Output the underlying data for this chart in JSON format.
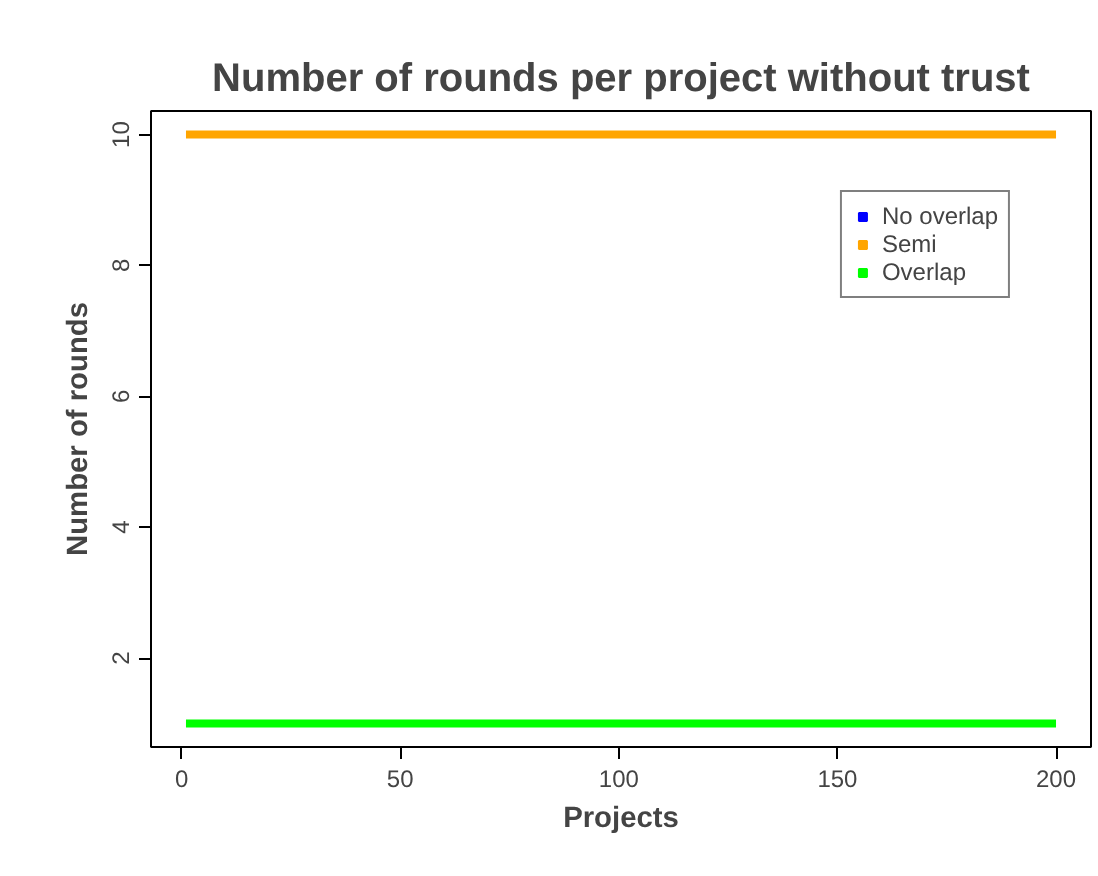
{
  "chart_data": {
    "type": "line",
    "title": "Number of rounds per project without trust",
    "xlabel": "Projects",
    "ylabel": "Number of rounds",
    "x": [
      1,
      200
    ],
    "series": [
      {
        "name": "No overlap",
        "color": "#0000ff",
        "values": [
          null,
          null
        ]
      },
      {
        "name": "Semi",
        "color": "#ffa500",
        "values": [
          10,
          10
        ]
      },
      {
        "name": "Overlap",
        "color": "#00ff00",
        "values": [
          1,
          1
        ]
      }
    ],
    "xlim": [
      -7,
      208
    ],
    "xticks": [
      0,
      50,
      100,
      150,
      200
    ],
    "ylim": [
      0.64,
      10.36
    ],
    "yticks": [
      2,
      4,
      6,
      8,
      10
    ],
    "grid": false,
    "legend": "top right",
    "marker": "none",
    "line_style": "solid"
  }
}
